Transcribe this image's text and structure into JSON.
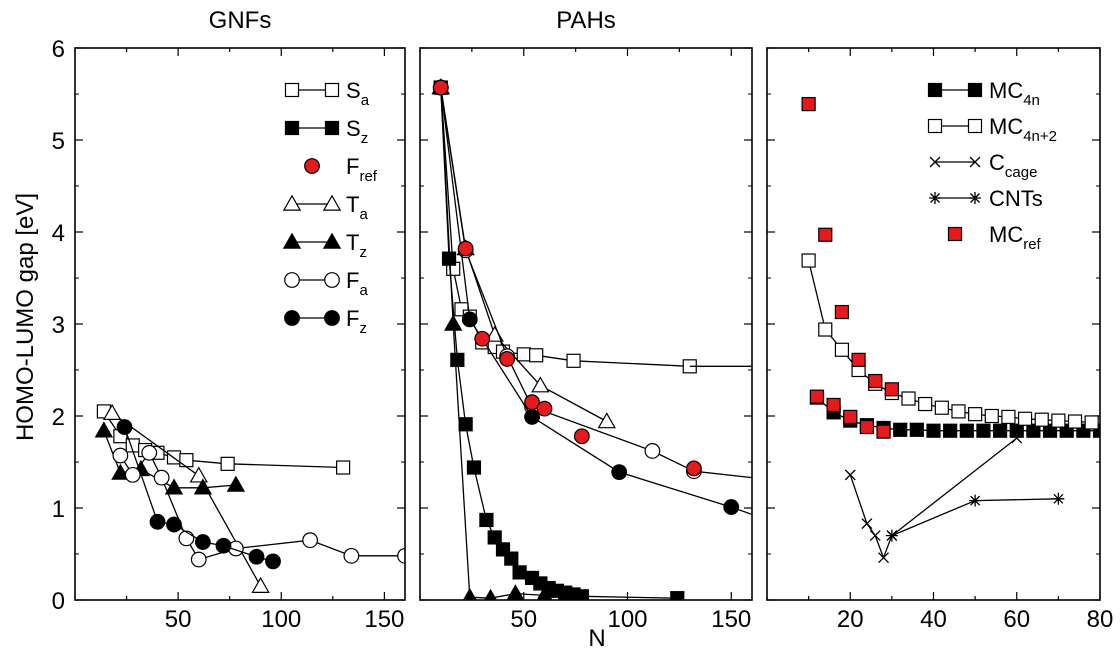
{
  "figure": {
    "ylabel": "HOMO-LUMO gap [eV]",
    "xlabel": "N"
  },
  "chart_data": [
    {
      "type": "line",
      "title": "GNFs",
      "xlim": [
        0,
        160
      ],
      "ylim": [
        0,
        6
      ],
      "xticks": [
        50,
        100,
        150
      ],
      "yticks": [
        0,
        1,
        2,
        3,
        4,
        5,
        6
      ],
      "legend": "top-right",
      "series": [
        {
          "name": "S",
          "sub": "a",
          "marker": "square",
          "fill": "none",
          "line": true,
          "x": [
            14,
            22,
            28,
            34,
            40,
            48,
            54,
            74,
            130
          ],
          "y": [
            2.05,
            1.78,
            1.68,
            1.63,
            1.6,
            1.55,
            1.52,
            1.48,
            1.44
          ]
        },
        {
          "name": "T",
          "sub": "a",
          "marker": "triangle",
          "fill": "none",
          "line": true,
          "x": [
            18,
            60,
            90
          ],
          "y": [
            2.03,
            1.35,
            0.15
          ]
        },
        {
          "name": "T",
          "sub": "z",
          "marker": "triangle",
          "fill": "#000",
          "line": true,
          "x": [
            14,
            22,
            32,
            48,
            62,
            78
          ],
          "y": [
            1.84,
            1.38,
            1.42,
            1.22,
            1.22,
            1.25
          ]
        },
        {
          "name": "F",
          "sub": "a",
          "marker": "circle",
          "fill": "none",
          "line": true,
          "x": [
            22,
            28,
            36,
            42,
            54,
            60,
            78,
            114,
            134,
            160
          ],
          "y": [
            1.57,
            1.36,
            1.6,
            1.33,
            0.67,
            0.44,
            0.56,
            0.65,
            0.48,
            0.48
          ]
        },
        {
          "name": "F",
          "sub": "z",
          "marker": "circle",
          "fill": "#000",
          "line": true,
          "x": [
            24,
            40,
            48,
            62,
            72,
            88,
            96
          ],
          "y": [
            1.88,
            0.85,
            0.82,
            0.63,
            0.59,
            0.47,
            0.42
          ]
        },
        {
          "name": "S",
          "sub": "z",
          "marker": "square",
          "fill": "#000",
          "line": true,
          "x": [],
          "y": []
        },
        {
          "name": "F",
          "sub": "ref",
          "marker": "circle",
          "fill": "#e41a1c",
          "line": false,
          "x": [],
          "y": []
        }
      ],
      "legend_order": [
        0,
        5,
        6,
        1,
        2,
        3,
        4
      ]
    },
    {
      "type": "line",
      "title": "PAHs",
      "xlim": [
        0,
        160
      ],
      "ylim": [
        0,
        6
      ],
      "xticks": [
        50,
        100,
        150
      ],
      "yticks": [
        0,
        1,
        2,
        3,
        4,
        5,
        6
      ],
      "series": [
        {
          "name": "S",
          "sub": "a",
          "marker": "square",
          "fill": "none",
          "line": true,
          "x": [
            10,
            16,
            20,
            24,
            30,
            36,
            40,
            50,
            56,
            74,
            130
          ],
          "y": [
            5.57,
            3.6,
            3.16,
            3.08,
            2.8,
            2.75,
            2.7,
            2.67,
            2.66,
            2.6,
            2.54
          ]
        },
        {
          "name": "",
          "marker": "none",
          "fill": "none",
          "line": true,
          "x": [
            130,
            160
          ],
          "y": [
            2.54,
            2.54
          ]
        },
        {
          "name": "S",
          "sub": "z",
          "marker": "square",
          "fill": "#000",
          "line": true,
          "x": [
            10,
            14,
            18,
            22,
            26,
            32,
            36,
            40,
            44,
            48,
            54,
            58,
            62,
            66,
            70,
            74,
            78,
            124
          ],
          "y": [
            5.57,
            3.71,
            2.61,
            1.91,
            1.44,
            0.87,
            0.68,
            0.55,
            0.45,
            0.3,
            0.24,
            0.18,
            0.13,
            0.1,
            0.08,
            0.06,
            0.04,
            0.02
          ]
        },
        {
          "name": "T",
          "sub": "a",
          "marker": "triangle",
          "fill": "none",
          "line": true,
          "x": [
            10,
            22,
            36,
            58,
            90
          ],
          "y": [
            5.57,
            3.82,
            2.88,
            2.33,
            1.94
          ]
        },
        {
          "name": "T",
          "sub": "z",
          "marker": "triangle",
          "fill": "#000",
          "line": true,
          "x": [
            10,
            16,
            24,
            34,
            46,
            60,
            76
          ],
          "y": [
            5.57,
            3.0,
            0.03,
            0.02,
            0.07,
            0.05,
            0.03
          ]
        },
        {
          "name": "F",
          "sub": "a",
          "marker": "circle",
          "fill": "none",
          "line": true,
          "x": [
            10,
            22,
            42,
            54,
            112,
            132
          ],
          "y": [
            5.57,
            3.8,
            2.65,
            2.1,
            1.62,
            1.4
          ]
        },
        {
          "name": "",
          "marker": "none",
          "fill": "none",
          "line": true,
          "x": [
            132,
            160
          ],
          "y": [
            1.4,
            1.33
          ]
        },
        {
          "name": "F",
          "sub": "z",
          "marker": "circle",
          "fill": "#000",
          "line": true,
          "x": [
            10,
            24,
            54,
            96,
            150
          ],
          "y": [
            5.57,
            3.05,
            1.99,
            1.39,
            1.01
          ]
        },
        {
          "name": "",
          "marker": "none",
          "fill": "none",
          "line": true,
          "x": [
            150,
            160
          ],
          "y": [
            1.01,
            0.93
          ]
        },
        {
          "name": "F",
          "sub": "ref",
          "marker": "circle",
          "fill": "#e41a1c",
          "line": false,
          "x": [
            10,
            22,
            30,
            42,
            54,
            60,
            78,
            132
          ],
          "y": [
            5.57,
            3.82,
            2.84,
            2.62,
            2.15,
            2.08,
            1.78,
            1.43
          ]
        }
      ]
    },
    {
      "type": "line",
      "title": "",
      "xlim": [
        0,
        80
      ],
      "ylim": [
        0,
        6
      ],
      "xticks": [
        20,
        40,
        60,
        80
      ],
      "yticks": [
        0,
        1,
        2,
        3,
        4,
        5,
        6
      ],
      "legend": "top-right",
      "series": [
        {
          "name": "MC",
          "sub": "4n",
          "marker": "square",
          "fill": "#000",
          "line": true,
          "x": [
            12,
            16,
            20,
            24,
            28,
            32,
            36,
            40,
            44,
            48,
            52,
            56,
            60,
            64,
            68,
            72,
            76,
            80
          ],
          "y": [
            2.2,
            2.04,
            1.95,
            1.9,
            1.87,
            1.85,
            1.85,
            1.84,
            1.84,
            1.84,
            1.84,
            1.84,
            1.84,
            1.84,
            1.84,
            1.84,
            1.84,
            1.84
          ]
        },
        {
          "name": "MC",
          "sub": "4n+2",
          "marker": "square",
          "fill": "none",
          "line": true,
          "x": [
            10,
            14,
            18,
            22,
            26,
            30,
            34,
            38,
            42,
            46,
            50,
            54,
            58,
            62,
            66,
            70,
            74,
            78
          ],
          "y": [
            3.69,
            2.94,
            2.72,
            2.5,
            2.35,
            2.25,
            2.19,
            2.13,
            2.09,
            2.05,
            2.02,
            2.0,
            1.99,
            1.97,
            1.96,
            1.95,
            1.94,
            1.93
          ]
        },
        {
          "name": "C",
          "sub": "cage",
          "marker": "x",
          "fill": "none",
          "line": true,
          "x": [
            20,
            24,
            26,
            28,
            30,
            60
          ],
          "y": [
            1.36,
            0.83,
            0.7,
            0.46,
            0.7,
            1.76
          ]
        },
        {
          "name": "CNTs",
          "sub": "",
          "marker": "star",
          "fill": "none",
          "line": true,
          "x": [
            30,
            50,
            70
          ],
          "y": [
            0.7,
            1.08,
            1.1
          ]
        },
        {
          "name": "MC",
          "sub": "ref",
          "marker": "square",
          "fill": "#e41a1c",
          "line": false,
          "x": [
            10,
            12,
            14,
            16,
            18,
            20,
            22,
            24,
            26,
            28,
            30
          ],
          "y": [
            5.39,
            2.21,
            3.97,
            2.12,
            3.13,
            1.99,
            2.61,
            1.88,
            2.38,
            1.83,
            2.29
          ]
        }
      ],
      "legend_order": [
        0,
        1,
        2,
        3,
        4
      ]
    }
  ]
}
